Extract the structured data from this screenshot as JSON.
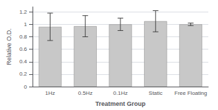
{
  "chart_data": {
    "type": "bar",
    "title": "",
    "categories": [
      "1Hz",
      "0.5Hz",
      "0.1Hz",
      "Static",
      "Free Floating"
    ],
    "values": [
      0.96,
      0.97,
      1.0,
      1.05,
      1.0
    ],
    "errors": [
      0.22,
      0.17,
      0.1,
      0.17,
      0.02
    ],
    "color": "#c8c8c8",
    "xlabel": "Treatment Group",
    "ylabel": "Relative O.D.",
    "ylim": [
      0,
      1.28
    ],
    "yticks": [
      0,
      0.2,
      0.4,
      0.6,
      0.8,
      1.0,
      1.2
    ],
    "grid": true
  }
}
